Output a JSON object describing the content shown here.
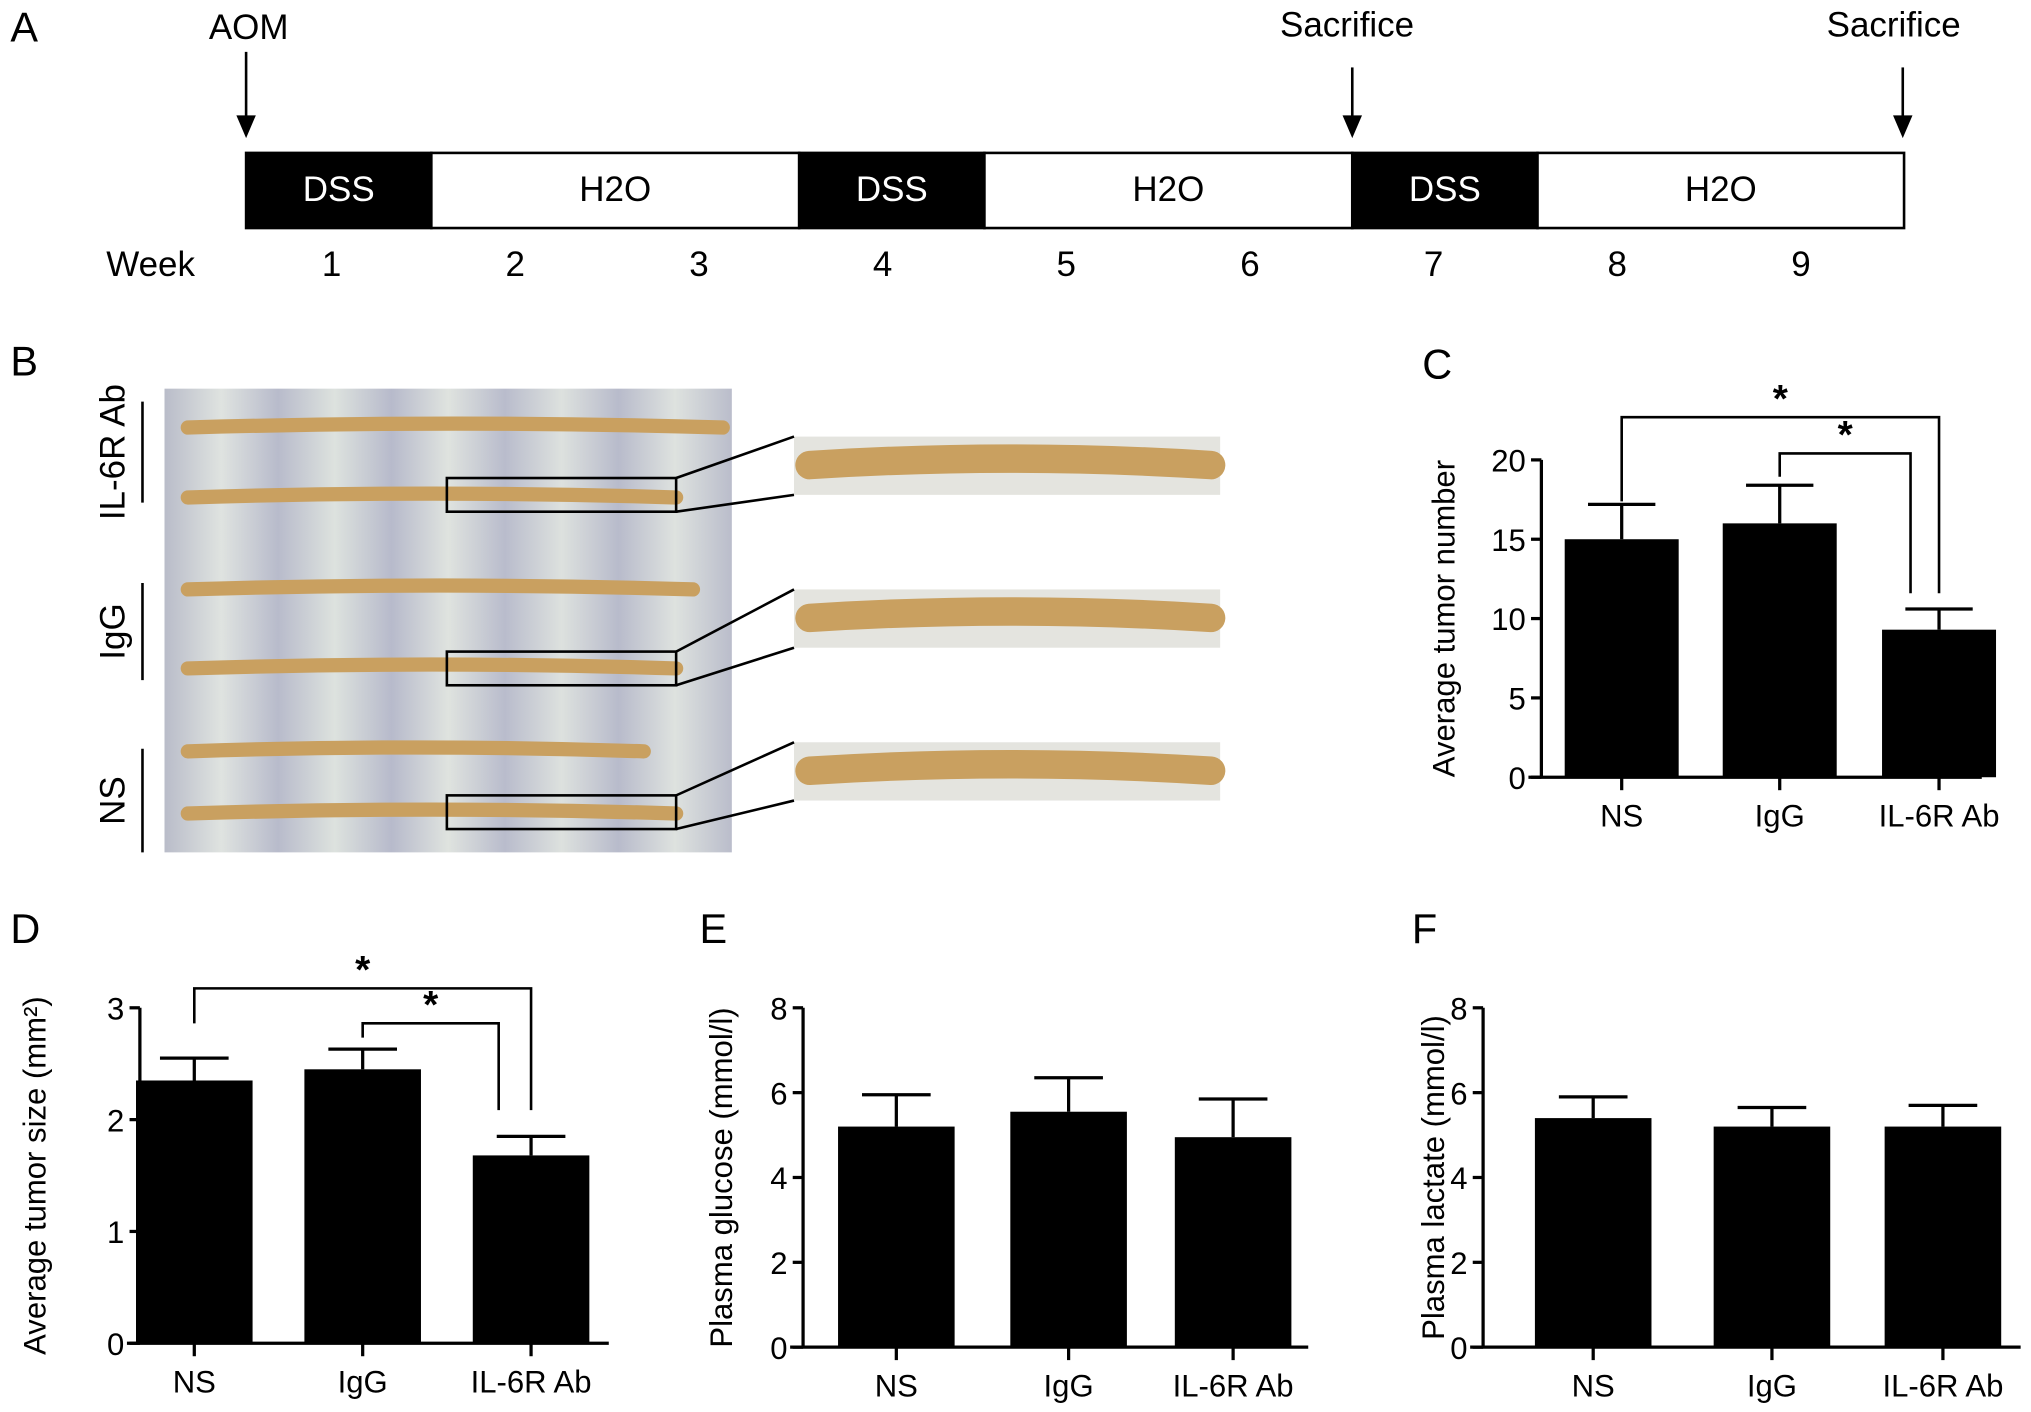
{
  "panels": {
    "a": "A",
    "b": "B",
    "c": "C",
    "d": "D",
    "e": "E",
    "f": "F"
  },
  "timeline": {
    "aom": "AOM",
    "sacrifice1": "Sacrifice",
    "sacrifice2": "Sacrifice",
    "segments": [
      "DSS",
      "H2O",
      "DSS",
      "H2O",
      "DSS",
      "H2O"
    ],
    "week_label": "Week",
    "weeks": [
      "1",
      "2",
      "3",
      "4",
      "5",
      "6",
      "7",
      "8",
      "9"
    ]
  },
  "photo": {
    "groups": [
      "IL-6R Ab",
      "IgG",
      "NS"
    ]
  },
  "colors": {
    "bar": "#000000",
    "photo_bg": "#c9cbd6",
    "colon": "#c9a060"
  },
  "chart_data": [
    {
      "id": "c",
      "type": "bar",
      "ylabel": "Average tumor number",
      "categories": [
        "NS",
        "IgG",
        "IL-6R Ab"
      ],
      "values": [
        15.0,
        16.0,
        9.3
      ],
      "errors": [
        2.2,
        2.4,
        1.3
      ],
      "ylim": [
        0,
        20
      ],
      "yticks": [
        "0",
        "5",
        "10",
        "15",
        "20"
      ],
      "significance": [
        {
          "pair": [
            "NS",
            "IL-6R Ab"
          ],
          "label": "*"
        },
        {
          "pair": [
            "IgG",
            "IL-6R Ab"
          ],
          "label": "*"
        }
      ]
    },
    {
      "id": "d",
      "type": "bar",
      "ylabel": "Average tumor size (mm²)",
      "categories": [
        "NS",
        "IgG",
        "IL-6R Ab"
      ],
      "values": [
        2.35,
        2.45,
        1.68
      ],
      "errors": [
        0.2,
        0.18,
        0.17
      ],
      "ylim": [
        0,
        3
      ],
      "yticks": [
        "0",
        "1",
        "2",
        "3"
      ],
      "significance": [
        {
          "pair": [
            "NS",
            "IL-6R Ab"
          ],
          "label": "*"
        },
        {
          "pair": [
            "IgG",
            "IL-6R Ab"
          ],
          "label": "*"
        }
      ]
    },
    {
      "id": "e",
      "type": "bar",
      "ylabel": "Plasma glucose (mmol/l)",
      "categories": [
        "NS",
        "IgG",
        "IL-6R Ab"
      ],
      "values": [
        5.2,
        5.55,
        4.95
      ],
      "errors": [
        0.75,
        0.8,
        0.9
      ],
      "ylim": [
        0,
        8
      ],
      "yticks": [
        "0",
        "2",
        "4",
        "6",
        "8"
      ],
      "significance": []
    },
    {
      "id": "f",
      "type": "bar",
      "ylabel": "Plasma  lactate (mmol/l)",
      "categories": [
        "NS",
        "IgG",
        "IL-6R Ab"
      ],
      "values": [
        5.4,
        5.2,
        5.2
      ],
      "errors": [
        0.5,
        0.45,
        0.5
      ],
      "ylim": [
        0,
        8
      ],
      "yticks": [
        "0",
        "2",
        "4",
        "6",
        "8"
      ],
      "significance": []
    }
  ]
}
